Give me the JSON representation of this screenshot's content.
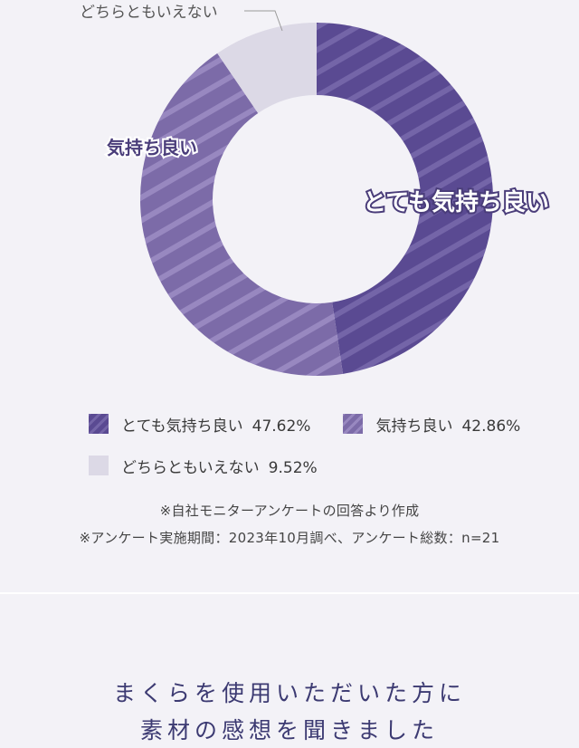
{
  "chart_data": {
    "type": "pie",
    "donut": true,
    "series": [
      {
        "name": "とても気持ち良い",
        "value": 47.62,
        "color": "#5a4a92",
        "stripe": "#7465a8",
        "label": "とても気持ち良い"
      },
      {
        "name": "気持ち良い",
        "value": 42.86,
        "color": "#7c6ba8",
        "stripe": "#9888c0",
        "label": "気持ち良い"
      },
      {
        "name": "どちらともいえない",
        "value": 9.52,
        "color": "#dcd9e6",
        "stripe": "#dcd9e6",
        "label": "どちらともいえない"
      }
    ]
  },
  "legend": {
    "items": [
      {
        "label": "とても気持ち良い",
        "percent": "47.62%"
      },
      {
        "label": "気持ち良い",
        "percent": "42.86%"
      },
      {
        "label": "どちらともいえない",
        "percent": "9.52%"
      }
    ]
  },
  "notes": {
    "line1": "※自社モニターアンケートの回答より作成",
    "line2": "※アンケート実施期間：2023年10月調べ、アンケート総数：n=21"
  },
  "heading": {
    "line1": "まくらを使用いただいた方に",
    "line2": "素材の感想を聞きました"
  },
  "colors": {
    "background": "#f3f2f7",
    "heading": "#3c3a72",
    "label": "#4a3d7a"
  }
}
